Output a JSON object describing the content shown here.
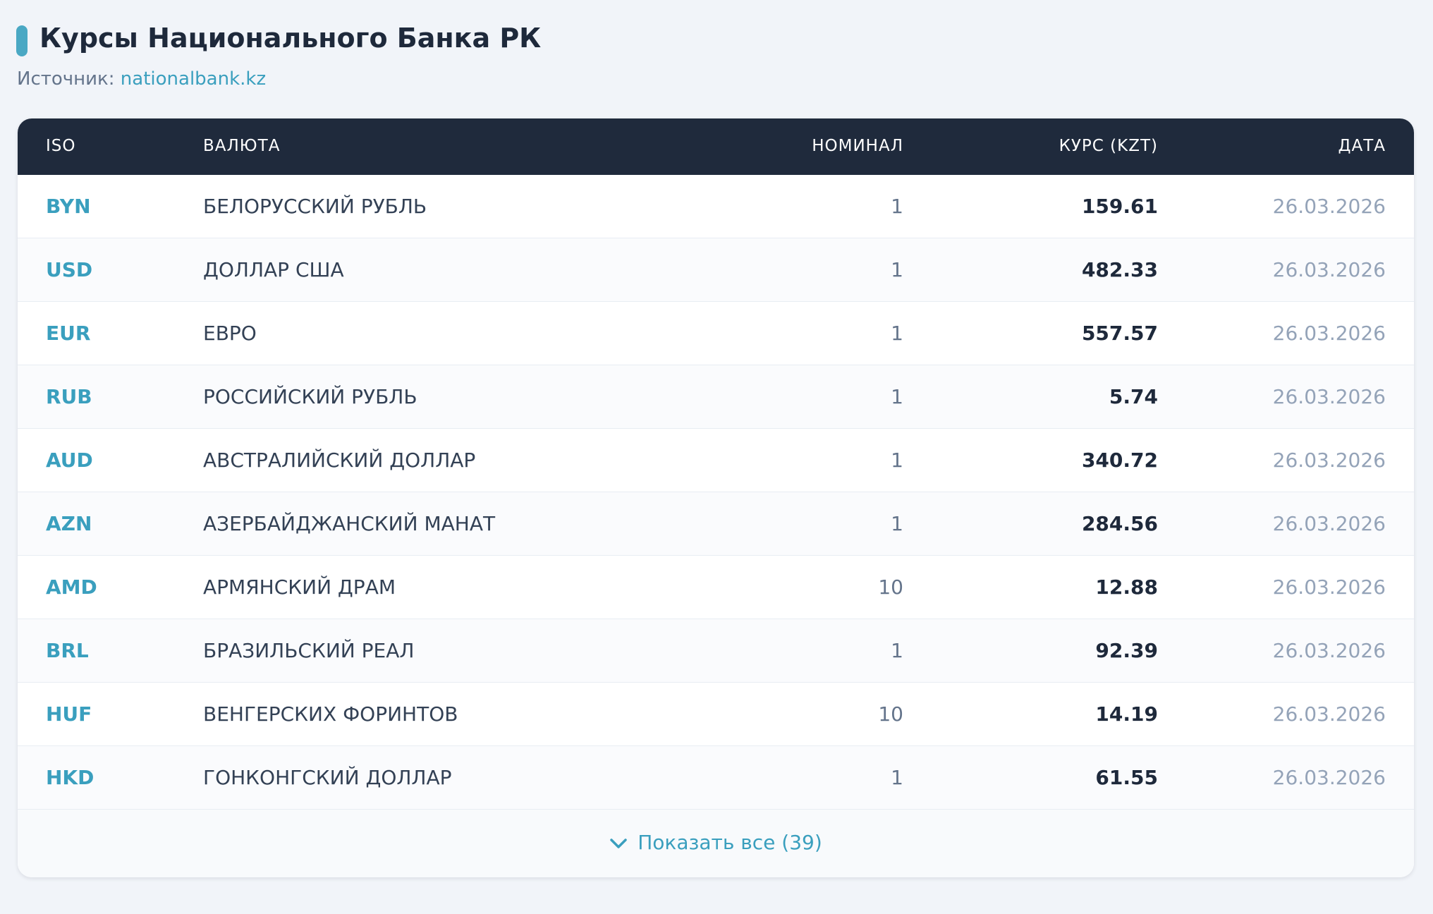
{
  "header": {
    "title": "Курсы Национального Банка РК",
    "source_label": "Источник:",
    "source_link": "nationalbank.kz"
  },
  "table": {
    "columns": [
      "ISO",
      "ВАЛЮТА",
      "НОМИНАЛ",
      "КУРС (KZT)",
      "ДАТА"
    ],
    "rows": [
      [
        "BYN",
        "БЕЛОРУССКИЙ РУБЛЬ",
        1,
        159.61,
        "26.03.2026"
      ],
      [
        "USD",
        "ДОЛЛАР США",
        1,
        482.33,
        "26.03.2026"
      ],
      [
        "EUR",
        "ЕВРО",
        1,
        557.57,
        "26.03.2026"
      ],
      [
        "RUB",
        "РОССИЙСКИЙ РУБЛЬ",
        1,
        5.74,
        "26.03.2026"
      ],
      [
        "AUD",
        "АВСТРАЛИЙСКИЙ ДОЛЛАР",
        1,
        340.72,
        "26.03.2026"
      ],
      [
        "AZN",
        "АЗЕРБАЙДЖАНСКИЙ МАНАТ",
        1,
        284.56,
        "26.03.2026"
      ],
      [
        "AMD",
        "АРМЯНСКИЙ ДРАМ",
        10,
        12.88,
        "26.03.2026"
      ],
      [
        "BRL",
        "БРАЗИЛЬСКИЙ РЕАЛ",
        1,
        92.39,
        "26.03.2026"
      ],
      [
        "HUF",
        "ВЕНГЕРСКИХ ФОРИНТОВ",
        10,
        14.19,
        "26.03.2026"
      ],
      [
        "HKD",
        "ГОНКОНГСКИЙ ДОЛЛАР",
        1,
        61.55,
        "26.03.2026"
      ]
    ]
  },
  "footer": {
    "show_all": "Показать все (39)"
  }
}
